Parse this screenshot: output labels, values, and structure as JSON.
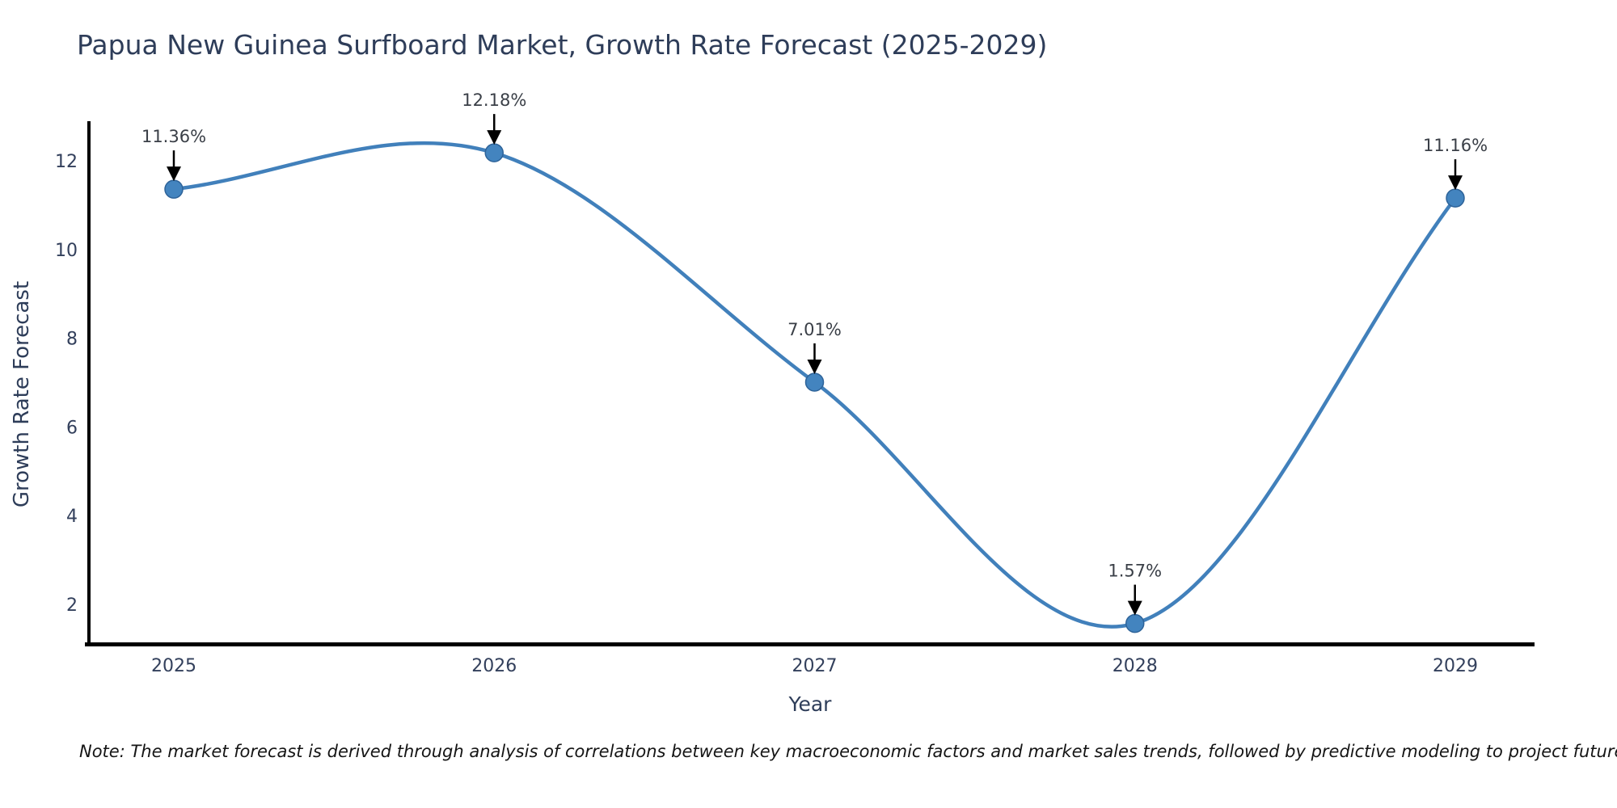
{
  "chart_data": {
    "type": "line",
    "title": "Papua New Guinea Surfboard Market, Growth Rate Forecast (2025-2029)",
    "xlabel": "Year",
    "ylabel": "Growth Rate Forecast",
    "x": [
      "2025",
      "2026",
      "2027",
      "2028",
      "2029"
    ],
    "values": [
      11.36,
      12.18,
      7.01,
      1.57,
      11.16
    ],
    "point_labels": [
      "11.36%",
      "12.18%",
      "7.01%",
      "1.57%",
      "11.16%"
    ],
    "yticks": [
      2,
      4,
      6,
      8,
      10,
      12
    ],
    "ylim": [
      1.1,
      12.9
    ],
    "grid": false,
    "legend": "none",
    "line_color": "#4180bb",
    "marker_fill": "#4384bf",
    "marker_edge": "#2e6399",
    "axis_color": "#000000",
    "text_color": "#2e3d59",
    "tick_color": "#33405c",
    "annotation_color": "#3a3f47",
    "arrow_color": "#000000",
    "note": "Note: The market forecast is derived through analysis of correlations between key macroeconomic factors and market sales trends, followed by predictive modeling to project future sales"
  }
}
